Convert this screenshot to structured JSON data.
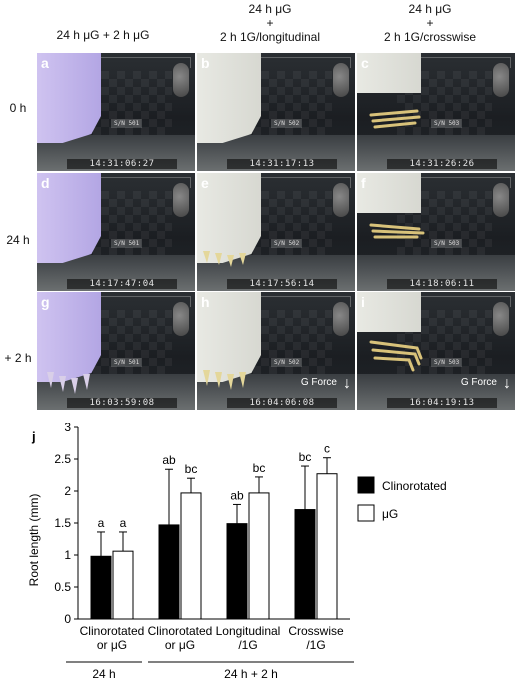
{
  "columns": [
    {
      "header": "24 h μG + 2 h μG"
    },
    {
      "header": "24 h μG\n+\n2 h 1G/longitudinal"
    },
    {
      "header": "24 h μG\n+\n2 h 1G/crosswise"
    }
  ],
  "rows": [
    {
      "label": "0 h"
    },
    {
      "label": "24 h"
    },
    {
      "label": "+ 2 h"
    }
  ],
  "panels": [
    {
      "letter": "a",
      "timestamp": "14:31:06:27",
      "serial": "S/N 501"
    },
    {
      "letter": "b",
      "timestamp": "14:31:17:13",
      "serial": "S/N 502"
    },
    {
      "letter": "c",
      "timestamp": "14:31:26:26",
      "serial": "S/N 503"
    },
    {
      "letter": "d",
      "timestamp": "14:17:47:04",
      "serial": "S/N 501"
    },
    {
      "letter": "e",
      "timestamp": "14:17:56:14",
      "serial": "S/N 502"
    },
    {
      "letter": "f",
      "timestamp": "14:18:06:11",
      "serial": "S/N 503"
    },
    {
      "letter": "g",
      "timestamp": "16:03:59:08",
      "serial": "S/N 501"
    },
    {
      "letter": "h",
      "timestamp": "16:04:06:08",
      "serial": "S/N 502"
    },
    {
      "letter": "i",
      "timestamp": "16:04:19:13",
      "serial": "S/N 503"
    }
  ],
  "gforce_label": "G Force",
  "colors": {
    "clinorotated": "#000000",
    "microgravity": "#ffffff"
  },
  "chart_data": {
    "panel_label": "j",
    "type": "bar",
    "ylabel": "Root length (mm)",
    "ylim": [
      0,
      3
    ],
    "yticks": [
      0,
      0.5,
      1,
      1.5,
      2,
      2.5,
      3
    ],
    "categories": [
      "Clinorotated or μG",
      "Clinorotated or μG",
      "Longitudinal /1G",
      "Crosswise /1G"
    ],
    "category_lines": [
      [
        "Clinorotated",
        "or μG"
      ],
      [
        "Clinorotated",
        "or μG"
      ],
      [
        "Longitudinal",
        "/1G"
      ],
      [
        "Crosswise",
        "/1G"
      ]
    ],
    "groups": [
      {
        "label": "24 h",
        "categories": [
          0
        ]
      },
      {
        "label": "24 h + 2 h",
        "categories": [
          1,
          2,
          3
        ]
      }
    ],
    "series": [
      {
        "name": "Clinorotated",
        "color": "#000000",
        "values": [
          0.98,
          1.47,
          1.49,
          1.71
        ],
        "errors": [
          0.38,
          0.87,
          0.3,
          0.68
        ],
        "letters": [
          "a",
          "ab",
          "ab",
          "bc"
        ]
      },
      {
        "name": "μG",
        "color": "#ffffff",
        "values": [
          1.06,
          1.97,
          1.97,
          2.27
        ],
        "errors": [
          0.3,
          0.23,
          0.25,
          0.25
        ],
        "letters": [
          "a",
          "bc",
          "bc",
          "c"
        ]
      }
    ],
    "legend_position": "right"
  }
}
